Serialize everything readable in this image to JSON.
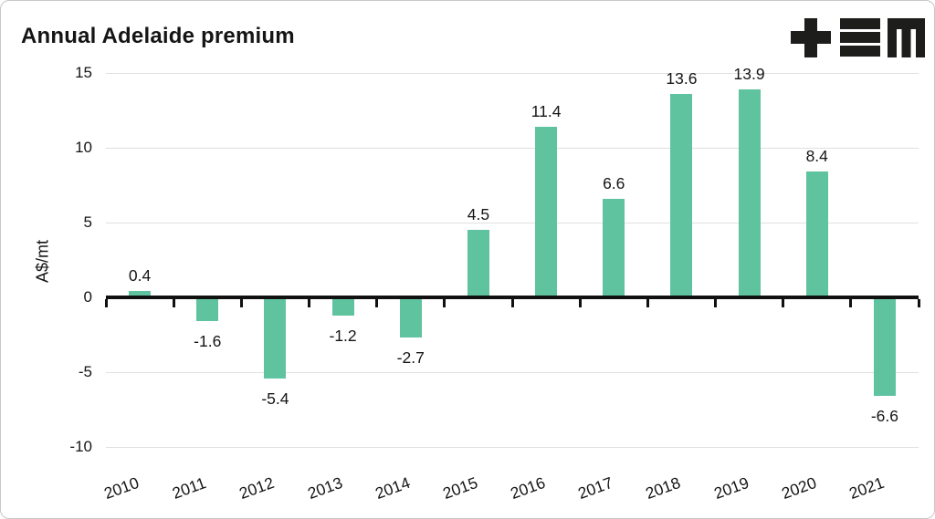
{
  "page": {
    "title": "Annual Adelaide premium"
  },
  "logo": {
    "icon": "tem-logo",
    "color": "#1d1d1b"
  },
  "chart_data": {
    "type": "bar",
    "title": "Annual Adelaide premium",
    "categories": [
      "2010",
      "2011",
      "2012",
      "2013",
      "2014",
      "2015",
      "2016",
      "2017",
      "2018",
      "2019",
      "2020",
      "2021"
    ],
    "values": [
      0.4,
      -1.6,
      -5.4,
      -1.2,
      -2.7,
      4.5,
      11.4,
      6.6,
      13.6,
      13.9,
      8.4,
      -6.6
    ],
    "data_labels": [
      "0.4",
      "-1.6",
      "-5.4",
      "-1.2",
      "-2.7",
      "4.5",
      "11.4",
      "6.6",
      "13.6",
      "13.9",
      "8.4",
      "-6.6"
    ],
    "xlabel": "",
    "ylabel": "A$/mt",
    "ylim": [
      -10,
      15
    ],
    "yticks": [
      15,
      10,
      5,
      0,
      -5,
      -10
    ],
    "grid": true,
    "legend": "none",
    "colors": {
      "bar": "#5fc3a0",
      "axis": "#111111",
      "gridline": "#e0e0e0",
      "text": "#151515"
    }
  }
}
